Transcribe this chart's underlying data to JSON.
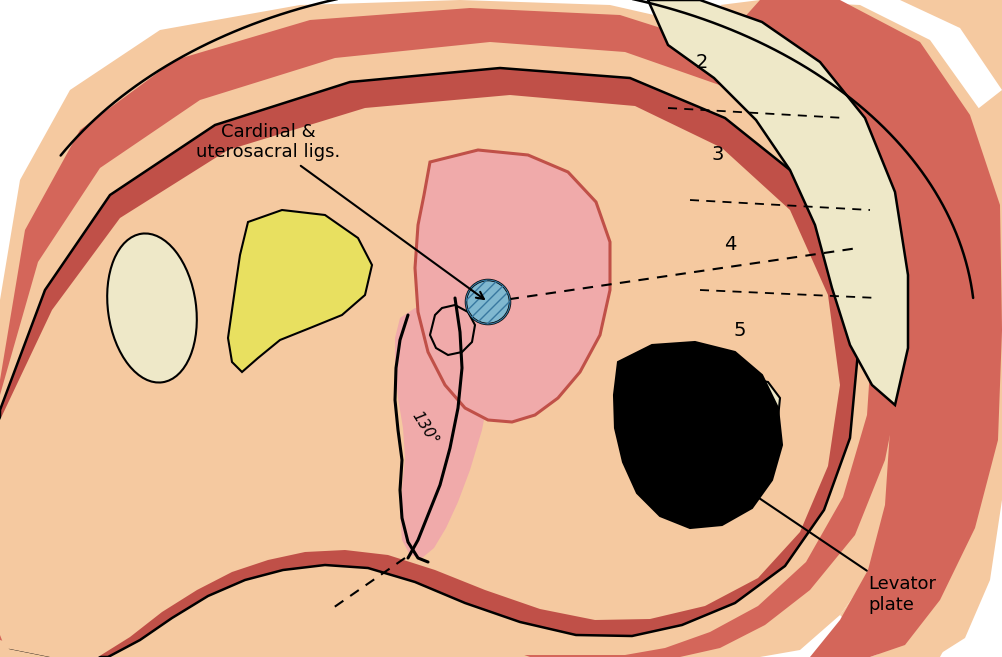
{
  "bg_color": "#ffffff",
  "color_skin_peach": "#f5c9a0",
  "color_red_main": "#d4665a",
  "color_red_dark": "#c05048",
  "color_bone": "#eee8c8",
  "color_yellow": "#e8e060",
  "color_pink_light": "#f0aaaa",
  "color_pink_mid": "#e89898",
  "color_black": "#000000",
  "color_blue": "#80b8d0",
  "label_cardinal": "Cardinal &\nuterosacral ligs.",
  "label_levator": "Levator\nplate",
  "label_angle": "130°",
  "sacral_numbers": [
    "2",
    "3",
    "4",
    "5"
  ]
}
